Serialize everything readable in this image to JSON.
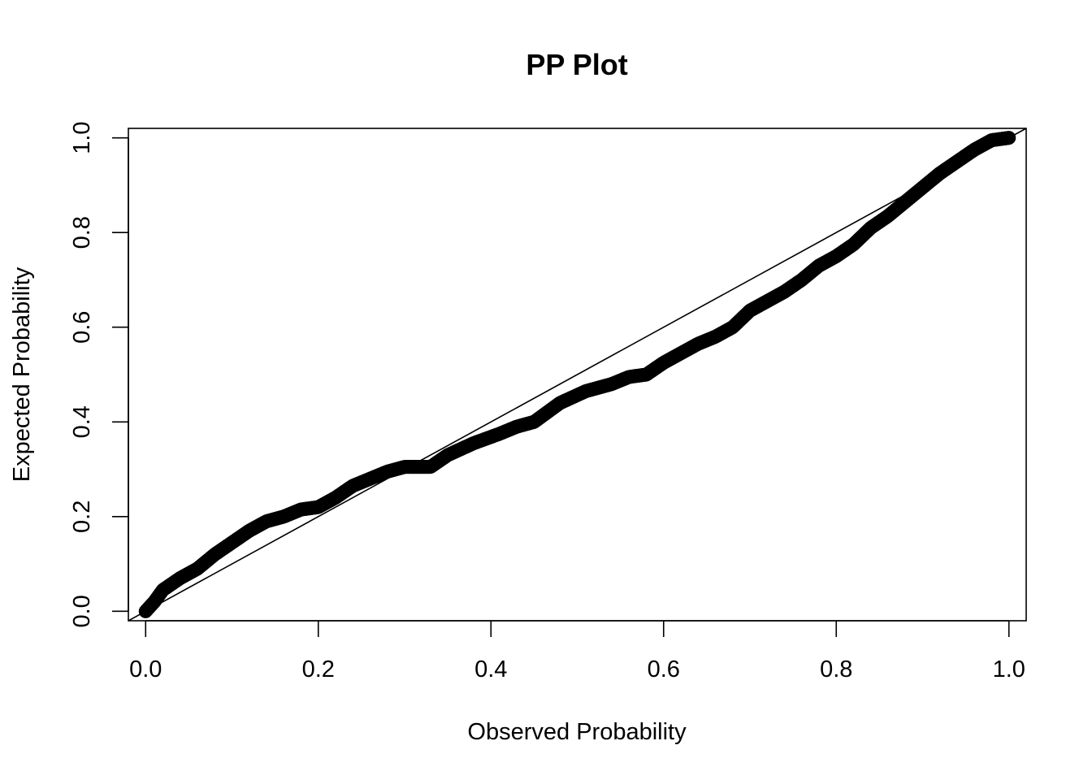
{
  "chart_data": {
    "type": "scatter",
    "title": "PP Plot",
    "xlabel": "Observed Probability",
    "ylabel": "Expected Probability",
    "xlim": [
      -0.02,
      1.02
    ],
    "ylim": [
      -0.02,
      1.02
    ],
    "x_ticks": [
      "0.0",
      "0.2",
      "0.4",
      "0.6",
      "0.8",
      "1.0"
    ],
    "y_ticks": [
      "0.0",
      "0.2",
      "0.4",
      "0.6",
      "0.8",
      "1.0"
    ],
    "reference_line": {
      "from": [
        0,
        0
      ],
      "to": [
        1,
        1
      ]
    },
    "grid": false,
    "legend": "none",
    "point_color": "#000000",
    "curve_knots": [
      [
        0.0,
        0.0
      ],
      [
        0.01,
        0.02
      ],
      [
        0.02,
        0.045
      ],
      [
        0.04,
        0.07
      ],
      [
        0.06,
        0.09
      ],
      [
        0.08,
        0.12
      ],
      [
        0.1,
        0.145
      ],
      [
        0.12,
        0.17
      ],
      [
        0.14,
        0.19
      ],
      [
        0.16,
        0.2
      ],
      [
        0.18,
        0.215
      ],
      [
        0.2,
        0.22
      ],
      [
        0.22,
        0.24
      ],
      [
        0.24,
        0.265
      ],
      [
        0.26,
        0.28
      ],
      [
        0.28,
        0.295
      ],
      [
        0.3,
        0.305
      ],
      [
        0.33,
        0.305
      ],
      [
        0.35,
        0.33
      ],
      [
        0.38,
        0.355
      ],
      [
        0.41,
        0.375
      ],
      [
        0.43,
        0.39
      ],
      [
        0.45,
        0.4
      ],
      [
        0.48,
        0.44
      ],
      [
        0.51,
        0.465
      ],
      [
        0.54,
        0.48
      ],
      [
        0.56,
        0.495
      ],
      [
        0.58,
        0.5
      ],
      [
        0.6,
        0.525
      ],
      [
        0.62,
        0.545
      ],
      [
        0.64,
        0.565
      ],
      [
        0.66,
        0.58
      ],
      [
        0.68,
        0.6
      ],
      [
        0.7,
        0.635
      ],
      [
        0.72,
        0.655
      ],
      [
        0.74,
        0.675
      ],
      [
        0.76,
        0.7
      ],
      [
        0.78,
        0.73
      ],
      [
        0.8,
        0.75
      ],
      [
        0.82,
        0.775
      ],
      [
        0.84,
        0.81
      ],
      [
        0.86,
        0.835
      ],
      [
        0.88,
        0.865
      ],
      [
        0.9,
        0.895
      ],
      [
        0.92,
        0.925
      ],
      [
        0.94,
        0.95
      ],
      [
        0.96,
        0.975
      ],
      [
        0.98,
        0.995
      ],
      [
        1.0,
        1.0
      ]
    ],
    "n_points": 1000
  }
}
